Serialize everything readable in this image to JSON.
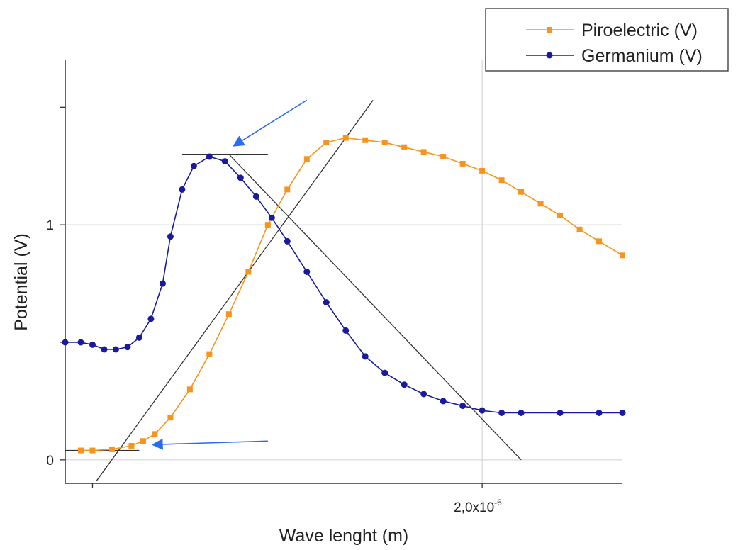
{
  "chart_data": {
    "type": "line",
    "xlabel": "Wave lenght (m)",
    "ylabel": "Potential (V)",
    "x_ticks": [
      {
        "x": 1e-06,
        "label": ""
      },
      {
        "x": 2e-06,
        "label": "2,0x10",
        "exp": "-6"
      }
    ],
    "y_ticks": [
      {
        "y": 0,
        "label": "0"
      },
      {
        "y": 0.5,
        "label": ""
      },
      {
        "y": 1,
        "label": "1"
      },
      {
        "y": 1.5,
        "label": ""
      }
    ],
    "xlim": [
      9.3e-07,
      2.36e-06
    ],
    "ylim": [
      -0.1,
      1.7
    ],
    "grid": true,
    "legend_position": "top-right",
    "colors": {
      "piroelectric": "#f7941d",
      "germanium": "#1a1a9e",
      "arrow": "#2a6cf0",
      "fit": "#333333"
    },
    "series": [
      {
        "name": "Piroelectric (V)",
        "marker": "square",
        "x": [
          9.7e-07,
          1e-06,
          1.05e-06,
          1.1e-06,
          1.13e-06,
          1.16e-06,
          1.2e-06,
          1.25e-06,
          1.3e-06,
          1.35e-06,
          1.4e-06,
          1.45e-06,
          1.5e-06,
          1.55e-06,
          1.6e-06,
          1.65e-06,
          1.7e-06,
          1.75e-06,
          1.8e-06,
          1.85e-06,
          1.9e-06,
          1.95e-06,
          2e-06,
          2.05e-06,
          2.1e-06,
          2.15e-06,
          2.2e-06,
          2.25e-06,
          2.3e-06,
          2.36e-06
        ],
        "y": [
          0.04,
          0.04,
          0.045,
          0.06,
          0.08,
          0.11,
          0.18,
          0.3,
          0.45,
          0.62,
          0.8,
          1.0,
          1.15,
          1.28,
          1.35,
          1.37,
          1.36,
          1.35,
          1.33,
          1.31,
          1.29,
          1.26,
          1.23,
          1.19,
          1.14,
          1.09,
          1.04,
          0.98,
          0.93,
          0.87
        ]
      },
      {
        "name": "Germanium (V)",
        "marker": "circle",
        "x": [
          9.3e-07,
          9.7e-07,
          1e-06,
          1.03e-06,
          1.06e-06,
          1.09e-06,
          1.12e-06,
          1.15e-06,
          1.18e-06,
          1.2e-06,
          1.23e-06,
          1.26e-06,
          1.3e-06,
          1.34e-06,
          1.38e-06,
          1.42e-06,
          1.46e-06,
          1.5e-06,
          1.55e-06,
          1.6e-06,
          1.65e-06,
          1.7e-06,
          1.75e-06,
          1.8e-06,
          1.85e-06,
          1.9e-06,
          1.95e-06,
          2e-06,
          2.05e-06,
          2.1e-06,
          2.2e-06,
          2.3e-06,
          2.36e-06
        ],
        "y": [
          0.5,
          0.5,
          0.49,
          0.47,
          0.47,
          0.48,
          0.52,
          0.6,
          0.75,
          0.95,
          1.15,
          1.25,
          1.29,
          1.27,
          1.2,
          1.12,
          1.03,
          0.93,
          0.8,
          0.67,
          0.55,
          0.44,
          0.37,
          0.32,
          0.28,
          0.25,
          0.23,
          0.21,
          0.2,
          0.2,
          0.2,
          0.2,
          0.2
        ]
      }
    ]
  }
}
